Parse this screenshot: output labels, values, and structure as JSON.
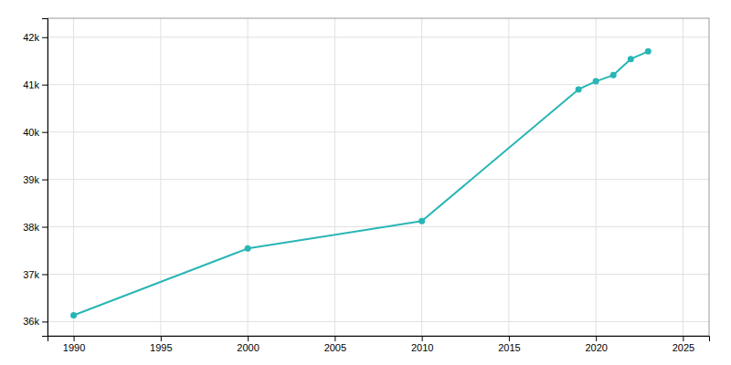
{
  "chart_data": {
    "type": "line",
    "x": [
      1990,
      2000,
      2010,
      2019,
      2020,
      2021,
      2022,
      2023
    ],
    "values": [
      36134,
      37542,
      38120,
      40900,
      41070,
      41200,
      41540,
      41700
    ],
    "color": "#29b5b5",
    "marker": "circle",
    "xlim": [
      1988.5,
      2026.5
    ],
    "ylim": [
      35700,
      42400
    ],
    "xticks": [
      1990,
      1995,
      2000,
      2005,
      2010,
      2015,
      2020,
      2025
    ],
    "yticks": [
      {
        "value": 36000,
        "label": "36k"
      },
      {
        "value": 37000,
        "label": "37k"
      },
      {
        "value": 38000,
        "label": "38k"
      },
      {
        "value": 39000,
        "label": "39k"
      },
      {
        "value": 40000,
        "label": "40k"
      },
      {
        "value": 41000,
        "label": "41k"
      },
      {
        "value": 42000,
        "label": "42k"
      }
    ],
    "grid": true
  }
}
